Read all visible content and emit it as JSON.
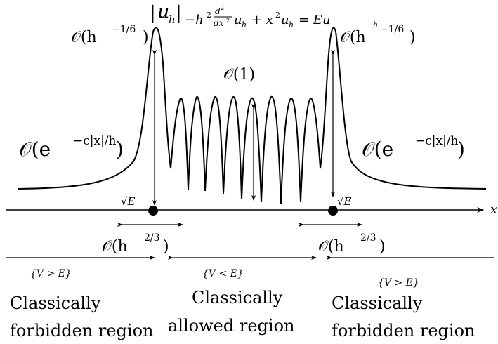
{
  "equation": {
    "abs_u_left": "|",
    "abs_u_var": "u",
    "abs_u_sub": "h",
    "abs_u_right": "|",
    "op1": "−h",
    "op1_sup": "2",
    "d_num": "d",
    "d_num_sup": "2",
    "d_den": "dx",
    "d_den_sup": "2",
    "u1": "u",
    "u1_sub": "h",
    "plus": "+ x",
    "plus_sup": "2",
    "u2": "u",
    "u2_sub": "h",
    "eq": "= Eu",
    "eq_sub": "h"
  },
  "labels": {
    "peak_left_main": "𝒪(h",
    "peak_left_sup": "−1/6",
    "peak_left_close": ")",
    "peak_right_main": "𝒪(h",
    "peak_right_sup": "−1/6",
    "peak_right_close": ")",
    "middle": "𝒪(1)",
    "decay_left_main": "𝒪(e",
    "decay_left_sup": "−c|x|/h",
    "decay_left_close": ")",
    "decay_right_main": "𝒪(e",
    "decay_right_sup": "−c|x|/h",
    "decay_right_close": ")",
    "sqrtE_left": "√E",
    "sqrtE_right": "√E",
    "x_axis": "x",
    "width_left_main": "𝒪(h",
    "width_left_sup": "2/3",
    "width_left_close": ")",
    "width_right_main": "𝒪(h",
    "width_right_sup": "2/3",
    "width_right_close": ")"
  },
  "regions": [
    {
      "condition": "{V > E}",
      "line1": "Classically",
      "line2": "forbidden region"
    },
    {
      "condition": "{V < E}",
      "line1": "Classically",
      "line2": "allowed region"
    },
    {
      "condition": "{V > E}",
      "line1": "Classically",
      "line2": "forbidden region"
    }
  ]
}
